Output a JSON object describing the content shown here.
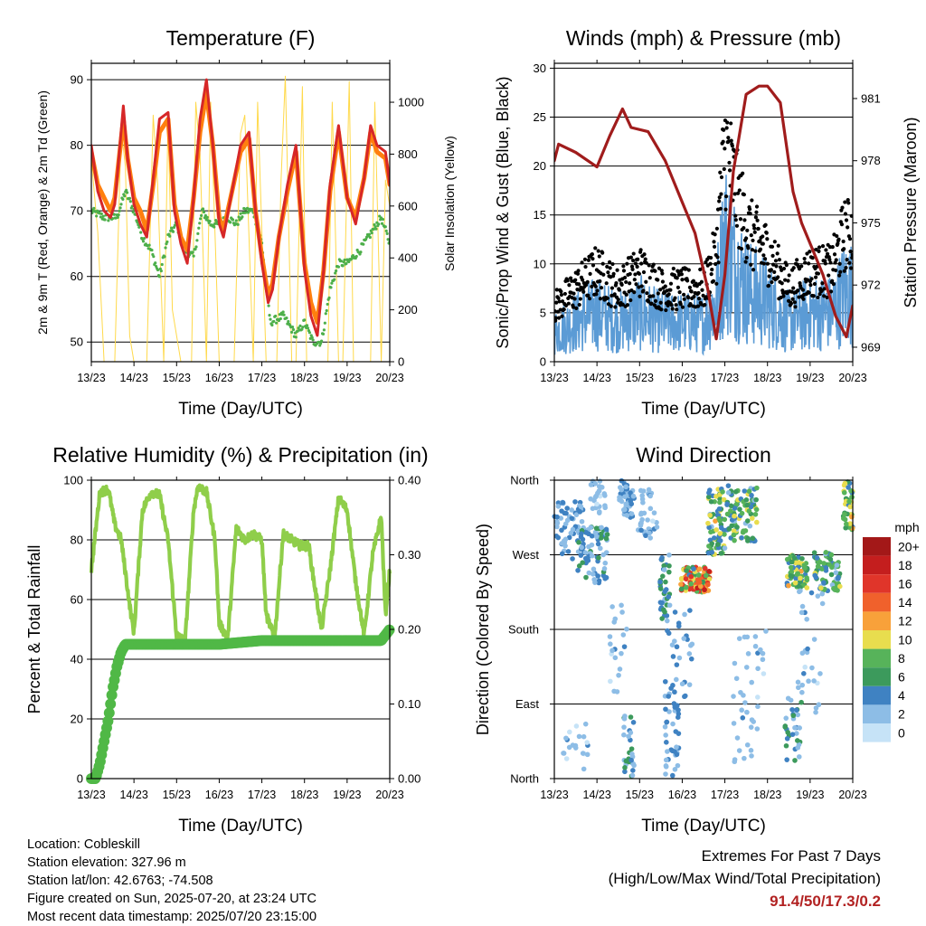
{
  "chart_data": [
    {
      "id": "temperature",
      "type": "line",
      "title": "Temperature (F)",
      "xlabel": "Time (Day/UTC)",
      "ylabel": "2m & 9m T (Red, Orange) & 2m Td (Green)",
      "ylabel_right": "Solar Insolation (Yellow)",
      "x_ticks": [
        "13/23",
        "14/23",
        "15/23",
        "16/23",
        "17/23",
        "18/23",
        "19/23",
        "20/23"
      ],
      "xlim": [
        0,
        7
      ],
      "ylim": [
        47,
        92.5
      ],
      "y_ticks": [
        50,
        60,
        70,
        80,
        90
      ],
      "y2lim": [
        0,
        1150
      ],
      "y2_ticks": [
        0,
        200,
        400,
        600,
        800,
        1000
      ],
      "gridlines": [
        50,
        60,
        70,
        80,
        90
      ],
      "series": [
        {
          "name": "2m T",
          "color": "#d62728",
          "x": [
            0,
            0.15,
            0.3,
            0.45,
            0.55,
            0.75,
            0.85,
            1,
            1.15,
            1.3,
            1.45,
            1.6,
            1.8,
            1.95,
            2.1,
            2.25,
            2.4,
            2.55,
            2.7,
            2.85,
            3,
            3.1,
            3.3,
            3.5,
            3.7,
            3.85,
            4,
            4.15,
            4.25,
            4.4,
            4.6,
            4.8,
            5,
            5.15,
            5.3,
            5.45,
            5.6,
            5.8,
            6,
            6.2,
            6.4,
            6.55,
            6.7,
            6.9,
            7
          ],
          "y": [
            80,
            73,
            70,
            69,
            71,
            86,
            78,
            71,
            68,
            66,
            75,
            84,
            85,
            70,
            65,
            62,
            72,
            84,
            90,
            80,
            68,
            66,
            73,
            80,
            82,
            70,
            62,
            56,
            58,
            66,
            74,
            80,
            61,
            54,
            51,
            61,
            74,
            83,
            72,
            68,
            75,
            83,
            80,
            79,
            74
          ]
        },
        {
          "name": "9m T",
          "color": "#ff7f0e",
          "x": [
            0,
            0.15,
            0.3,
            0.45,
            0.55,
            0.75,
            0.85,
            1,
            1.15,
            1.3,
            1.45,
            1.6,
            1.8,
            1.95,
            2.1,
            2.25,
            2.4,
            2.55,
            2.7,
            2.85,
            3,
            3.1,
            3.3,
            3.5,
            3.7,
            3.85,
            4,
            4.15,
            4.25,
            4.4,
            4.6,
            4.8,
            5,
            5.15,
            5.3,
            5.45,
            5.6,
            5.8,
            6,
            6.2,
            6.4,
            6.55,
            6.7,
            6.9,
            7
          ],
          "y": [
            79,
            74,
            72,
            70,
            72,
            84,
            78,
            72,
            70,
            67,
            74,
            82,
            84,
            71,
            66,
            64,
            72,
            82,
            88,
            80,
            69,
            67,
            73,
            79,
            81,
            70,
            63,
            57,
            59,
            66,
            73,
            79,
            62,
            56,
            53,
            61,
            73,
            82,
            72,
            69,
            75,
            82,
            79,
            78,
            74
          ]
        },
        {
          "name": "2m Td",
          "color": "#4daf4a",
          "x": [
            0,
            0.3,
            0.6,
            0.8,
            1,
            1.2,
            1.4,
            1.6,
            1.8,
            2.0,
            2.2,
            2.4,
            2.6,
            2.8,
            3.0,
            3.2,
            3.4,
            3.6,
            3.8,
            4.0,
            4.2,
            4.5,
            4.8,
            5.0,
            5.2,
            5.4,
            5.6,
            5.8,
            6.0,
            6.3,
            6.6,
            6.8,
            7
          ],
          "y": [
            70,
            69,
            69,
            73,
            70,
            66,
            64,
            60,
            66,
            68,
            64,
            63,
            70,
            68,
            68,
            69,
            68,
            70,
            70,
            65,
            53,
            54,
            51,
            53,
            50,
            50,
            58,
            62,
            62,
            64,
            67,
            69,
            65
          ]
        },
        {
          "name": "Solar",
          "color": "#ffd94a",
          "x": [
            0,
            0.15,
            0.3,
            0.45,
            0.55,
            0.7,
            0.8,
            0.9,
            1.0,
            1.1,
            1.2,
            1.3,
            1.45,
            1.55,
            1.7,
            1.8,
            1.9,
            2.1,
            2.2,
            2.35,
            2.45,
            2.55,
            2.7,
            2.8,
            3.0,
            3.1,
            3.25,
            3.35,
            3.5,
            3.6,
            3.8,
            3.9,
            4.1,
            4.2,
            4.35,
            4.45,
            4.55,
            4.7,
            4.8,
            4.95,
            5.05,
            5.3,
            5.4,
            5.55,
            5.65,
            5.8,
            5.9,
            6.05,
            6.15,
            6.3,
            6.4,
            6.55,
            6.65,
            6.8,
            6.9,
            7
          ],
          "y": [
            780,
            500,
            0,
            0,
            0,
            900,
            750,
            100,
            0,
            0,
            0,
            0,
            950,
            700,
            0,
            950,
            200,
            0,
            0,
            0,
            1000,
            800,
            0,
            1000,
            0,
            0,
            0,
            0,
            880,
            950,
            0,
            1000,
            0,
            0,
            0,
            700,
            1100,
            0,
            0,
            1060,
            0,
            0,
            0,
            0,
            1000,
            0,
            0,
            1080,
            0,
            0,
            0,
            0,
            1000,
            0,
            700,
            600
          ]
        }
      ]
    },
    {
      "id": "winds",
      "type": "scatter",
      "title": "Winds (mph) & Pressure (mb)",
      "xlabel": "Time (Day/UTC)",
      "ylabel": "Sonic/Prop Wind & Gust (Blue, Black)",
      "ylabel_right": "Station Pressure (Maroon)",
      "x_ticks": [
        "13/23",
        "14/23",
        "15/23",
        "16/23",
        "17/23",
        "18/23",
        "19/23",
        "20/23"
      ],
      "xlim": [
        0,
        7
      ],
      "ylim": [
        0,
        30.5
      ],
      "y_ticks": [
        0,
        5,
        10,
        15,
        20,
        25,
        30
      ],
      "y2lim": [
        968.3,
        982.7
      ],
      "y2_ticks": [
        969,
        972,
        975,
        978,
        981
      ],
      "gridlines": [
        5,
        10,
        15,
        20,
        25,
        30
      ],
      "wind_profile": {
        "x": [
          0,
          0.5,
          1,
          1.5,
          2,
          2.5,
          3,
          3.5,
          3.8,
          4,
          4.3,
          4.6,
          5,
          5.5,
          6,
          6.5,
          6.8,
          7
        ],
        "y": [
          3,
          4,
          5,
          4,
          5,
          4,
          4,
          4,
          6,
          12,
          9,
          7,
          6,
          4,
          5,
          5,
          7,
          7
        ]
      },
      "pressure": {
        "color": "#a01c1c",
        "x": [
          0,
          0.1,
          0.5,
          1,
          1.3,
          1.6,
          1.8,
          2.2,
          2.6,
          3,
          3.3,
          3.6,
          3.8,
          4,
          4.2,
          4.5,
          4.8,
          5,
          5.3,
          5.6,
          5.8,
          6,
          6.3,
          6.6,
          6.85,
          7
        ],
        "y": [
          978,
          978.8,
          978.4,
          977.7,
          979.2,
          980.5,
          979.6,
          979.4,
          978,
          976,
          974.5,
          971.8,
          969.4,
          972.5,
          977.5,
          981.2,
          981.6,
          981.6,
          980.8,
          976.5,
          975,
          974,
          972.5,
          970.5,
          969.5,
          971
        ]
      }
    },
    {
      "id": "rh",
      "type": "line",
      "title": "Relative Humidity (%) & Precipitation (in)",
      "xlabel": "Time (Day/UTC)",
      "ylabel": "Percent & Total Rainfall",
      "x_ticks": [
        "13/23",
        "14/23",
        "15/23",
        "16/23",
        "17/23",
        "18/23",
        "19/23",
        "20/23"
      ],
      "xlim": [
        0,
        7
      ],
      "ylim": [
        0,
        100
      ],
      "y_ticks": [
        0,
        20,
        40,
        60,
        80,
        100
      ],
      "y2lim": [
        0,
        0.4
      ],
      "y2_ticks": [
        "0.00",
        "0.10",
        "0.20",
        "0.30",
        "0.40"
      ],
      "gridlines": [
        20,
        40,
        60,
        80,
        100
      ],
      "series": [
        {
          "name": "RH",
          "color": "#8fce4a",
          "x": [
            0,
            0.2,
            0.4,
            0.55,
            0.7,
            0.9,
            1,
            1.2,
            1.4,
            1.6,
            1.8,
            2.0,
            2.2,
            2.4,
            2.5,
            2.7,
            2.9,
            3.0,
            3.2,
            3.4,
            3.6,
            3.8,
            4.0,
            4.1,
            4.3,
            4.5,
            4.7,
            4.9,
            5.1,
            5.2,
            5.4,
            5.6,
            5.8,
            6.0,
            6.2,
            6.4,
            6.6,
            6.8,
            6.9,
            7
          ],
          "y": [
            70,
            96,
            97,
            85,
            80,
            58,
            49,
            90,
            96,
            95,
            80,
            48,
            46,
            90,
            98,
            96,
            80,
            52,
            47,
            84,
            80,
            82,
            80,
            55,
            47,
            82,
            80,
            78,
            78,
            68,
            50,
            70,
            94,
            90,
            66,
            48,
            75,
            88,
            55,
            70
          ]
        },
        {
          "name": "Precip",
          "color": "#50b846",
          "x": [
            0,
            0.1,
            0.2,
            0.3,
            0.4,
            0.5,
            0.6,
            0.7,
            0.8,
            1,
            2,
            3,
            4,
            5,
            6,
            6.8,
            7
          ],
          "y": [
            0,
            0,
            0.02,
            0.05,
            0.08,
            0.12,
            0.15,
            0.17,
            0.18,
            0.18,
            0.18,
            0.18,
            0.185,
            0.185,
            0.185,
            0.185,
            0.2
          ]
        }
      ]
    },
    {
      "id": "winddir",
      "type": "scatter",
      "title": "Wind Direction",
      "xlabel": "Time (Day/UTC)",
      "ylabel": "Direction (Colored By Speed)",
      "x_ticks": [
        "13/23",
        "14/23",
        "15/23",
        "16/23",
        "17/23",
        "18/23",
        "19/23",
        "20/23"
      ],
      "xlim": [
        0,
        7
      ],
      "ylim": [
        0,
        360
      ],
      "y_tick_labels": [
        "North",
        "East",
        "South",
        "West",
        "North"
      ],
      "y_tick_values": [
        0,
        90,
        180,
        270,
        360
      ],
      "gridlines": [
        90,
        180,
        270
      ],
      "legend": {
        "title": "mph",
        "labels": [
          "20+",
          "18",
          "16",
          "14",
          "12",
          "10",
          "8",
          "6",
          "4",
          "2",
          "0"
        ],
        "colors": [
          "#a31818",
          "#c41e1e",
          "#e0352a",
          "#f0612c",
          "#f8a13a",
          "#e8dd4e",
          "#57b35a",
          "#3c9a5c",
          "#3f82c2",
          "#8dbde6",
          "#c6e3f7"
        ]
      }
    }
  ],
  "info": {
    "location": "Location: Cobleskill",
    "elevation": "Station elevation: 327.96 m",
    "latlon": "Station lat/lon: 42.6763; -74.508",
    "created": "Figure created on Sun, 2025-07-20, at 23:24 UTC",
    "timestamp": "Most recent data timestamp: 2025/07/20 23:15:00"
  },
  "extremes": {
    "line1": "Extremes For Past 7 Days",
    "line2": "(High/Low/Max Wind/Total Precipitation)",
    "value": "91.4/50/17.3/0.2"
  }
}
